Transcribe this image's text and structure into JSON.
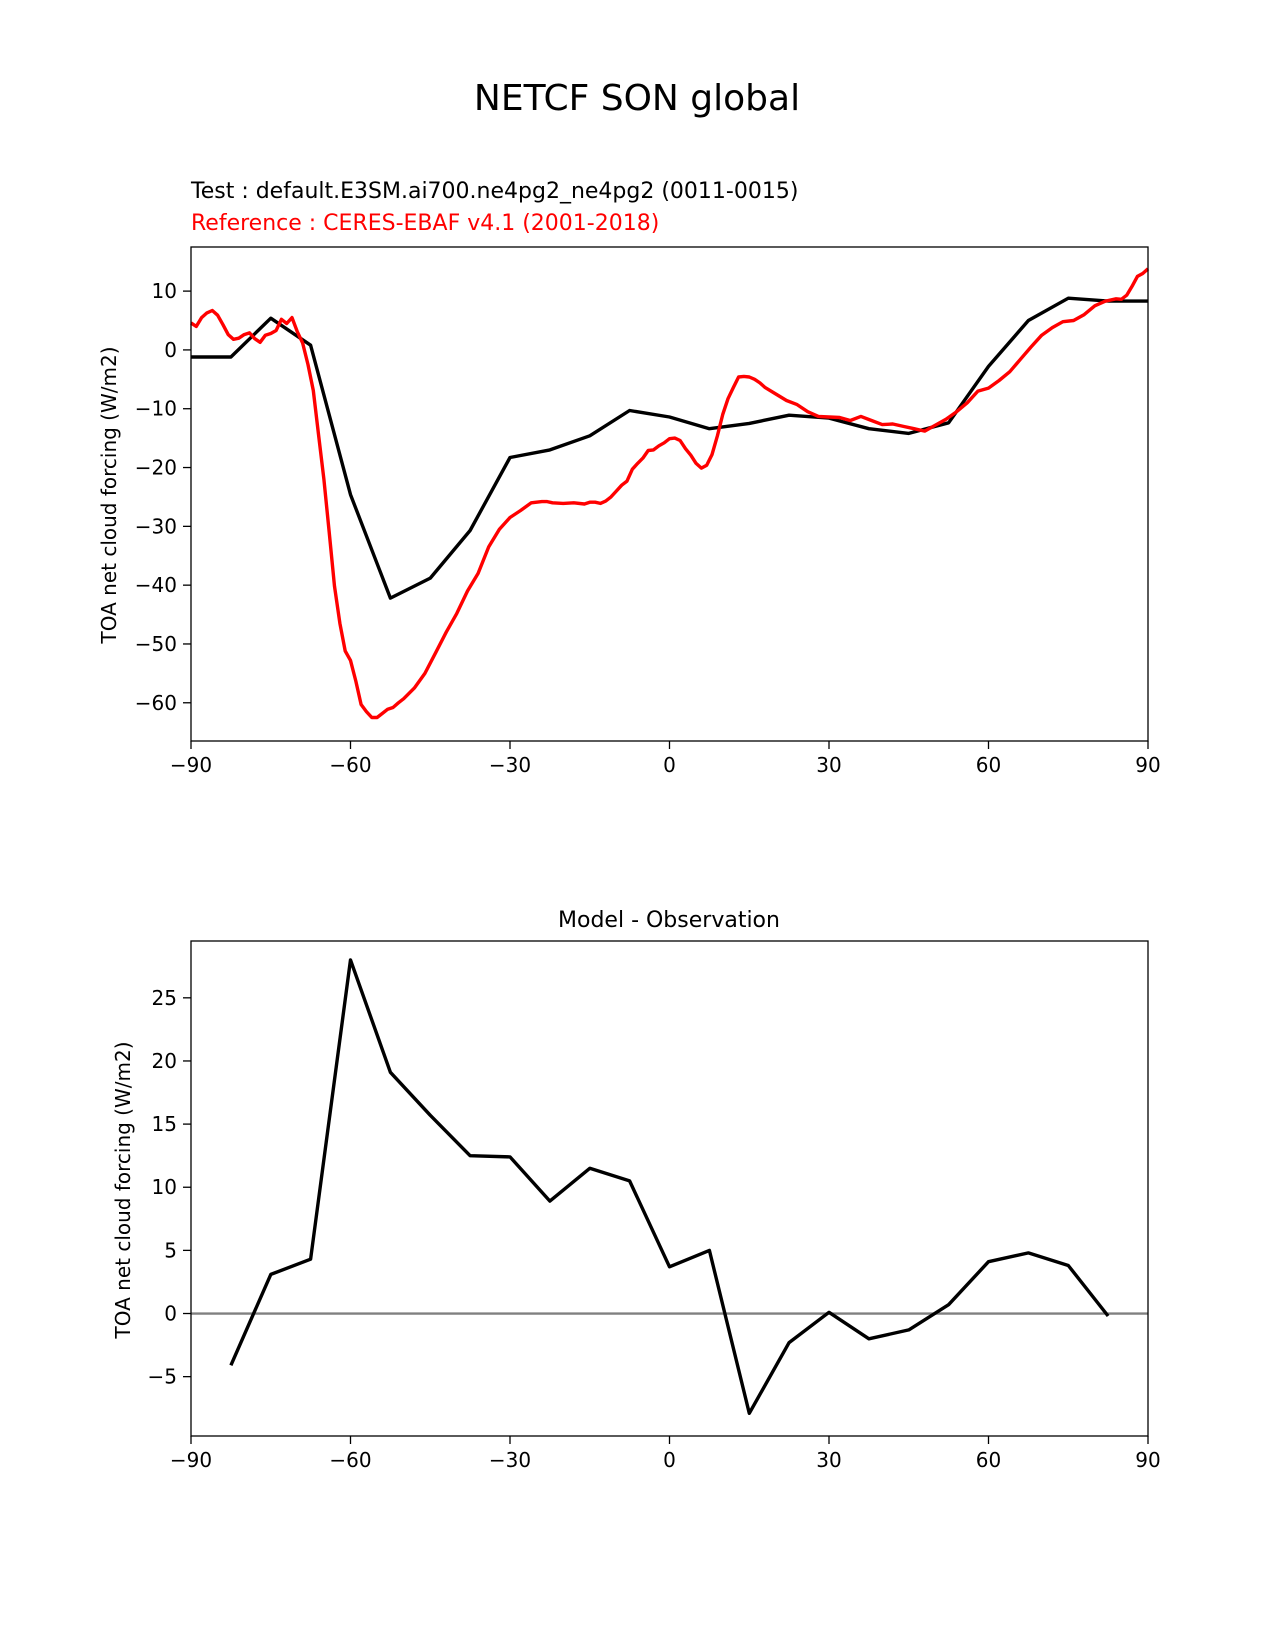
{
  "figure": {
    "title": "NETCF SON global"
  },
  "chart_data": [
    {
      "type": "line",
      "test_label": "Test : default.E3SM.ai700.ne4pg2_ne4pg2 (0011-0015)",
      "reference_label": "Reference : CERES-EBAF v4.1 (2001-2018)",
      "xlabel": "",
      "ylabel": "TOA net cloud forcing (W/m2)",
      "xlim": [
        -90,
        90
      ],
      "ylim": [
        -66.5,
        17.5
      ],
      "xticks": [
        -90,
        -60,
        -30,
        0,
        30,
        60,
        90
      ],
      "xtick_labels": [
        "−90",
        "−60",
        "−30",
        "0",
        "30",
        "60",
        "90"
      ],
      "yticks": [
        10,
        0,
        -10,
        -20,
        -30,
        -40,
        -50,
        -60
      ],
      "ytick_labels": [
        "10",
        "0",
        "−10",
        "−20",
        "−30",
        "−40",
        "−50",
        "−60"
      ],
      "grid": false,
      "series": [
        {
          "color": "#000000",
          "x": [
            -90,
            -82.5,
            -75,
            -67.5,
            -60,
            -52.5,
            -45,
            -37.5,
            -30,
            -22.5,
            -15,
            -7.5,
            0,
            7.5,
            15,
            22.5,
            30,
            37.5,
            45,
            52.5,
            60,
            67.5,
            75,
            82.5,
            90
          ],
          "y": [
            -1.2,
            -1.2,
            5.4,
            0.8,
            -24.6,
            -42.2,
            -38.8,
            -30.7,
            -18.3,
            -17.0,
            -14.6,
            -10.3,
            -11.4,
            -13.4,
            -12.5,
            -11.1,
            -11.6,
            -13.4,
            -14.2,
            -12.4,
            -2.8,
            5.0,
            8.8,
            8.3,
            8.3
          ]
        },
        {
          "color": "#ff0000",
          "x": [
            -90,
            -89,
            -88,
            -87,
            -86,
            -85,
            -84,
            -83,
            -82,
            -81,
            -80,
            -79,
            -78,
            -77,
            -76,
            -75,
            -74,
            -73,
            -72,
            -71,
            -70,
            -69,
            -68,
            -67,
            -66,
            -65,
            -64,
            -63,
            -62,
            -61,
            -60,
            -59,
            -58,
            -57,
            -56,
            -55,
            -54,
            -53,
            -52,
            -51,
            -50,
            -48,
            -46,
            -44,
            -42,
            -40,
            -38,
            -36,
            -34,
            -32,
            -30,
            -28,
            -26,
            -24,
            -23,
            -22,
            -20,
            -18,
            -16,
            -15,
            -14,
            -13,
            -12,
            -11,
            -10,
            -9,
            -8,
            -7,
            -6,
            -5,
            -4,
            -3,
            -2,
            -1,
            0,
            1,
            2,
            3,
            4,
            5,
            6,
            7,
            8,
            9,
            10,
            11,
            12,
            13,
            14,
            15,
            16,
            17,
            18,
            20,
            22,
            24,
            26,
            28,
            30,
            32,
            34,
            36,
            38,
            40,
            42,
            44,
            46,
            48,
            50,
            52,
            54,
            56,
            58,
            60,
            62,
            64,
            66,
            68,
            70,
            72,
            74,
            76,
            78,
            80,
            82,
            84,
            85,
            86,
            87,
            88,
            89,
            90
          ],
          "y": [
            4.6,
            4.0,
            5.5,
            6.3,
            6.7,
            5.9,
            4.3,
            2.6,
            1.8,
            2.0,
            2.6,
            2.9,
            1.9,
            1.3,
            2.5,
            2.8,
            3.3,
            5.2,
            4.5,
            5.5,
            3.1,
            1.2,
            -2.5,
            -6.9,
            -14.5,
            -22.0,
            -31.0,
            -40.2,
            -46.5,
            -51.2,
            -52.8,
            -56.3,
            -60.3,
            -61.5,
            -62.5,
            -62.5,
            -61.8,
            -61.1,
            -60.8,
            -60.0,
            -59.3,
            -57.5,
            -55.0,
            -51.5,
            -48.0,
            -44.8,
            -41.0,
            -38.0,
            -33.5,
            -30.5,
            -28.5,
            -27.3,
            -26.0,
            -25.8,
            -25.8,
            -26.0,
            -26.1,
            -26.0,
            -26.2,
            -25.9,
            -25.9,
            -26.1,
            -25.7,
            -25.0,
            -24.0,
            -23.0,
            -22.3,
            -20.3,
            -19.3,
            -18.4,
            -17.1,
            -17.0,
            -16.3,
            -15.8,
            -15.1,
            -15.0,
            -15.4,
            -16.8,
            -17.9,
            -19.3,
            -20.1,
            -19.6,
            -17.8,
            -14.6,
            -11.0,
            -8.3,
            -6.4,
            -4.6,
            -4.5,
            -4.6,
            -5.0,
            -5.6,
            -6.4,
            -7.5,
            -8.6,
            -9.3,
            -10.5,
            -11.3,
            -11.4,
            -11.5,
            -12.0,
            -11.3,
            -12.0,
            -12.7,
            -12.6,
            -13.0,
            -13.4,
            -13.8,
            -12.8,
            -11.8,
            -10.5,
            -9.0,
            -7.0,
            -6.5,
            -5.2,
            -3.7,
            -1.6,
            0.5,
            2.5,
            3.8,
            4.8,
            5.0,
            6.0,
            7.5,
            8.3,
            8.7,
            8.6,
            9.3,
            10.8,
            12.5,
            13.0,
            13.8
          ]
        }
      ]
    },
    {
      "type": "line",
      "title": "Model - Observation",
      "xlabel": "",
      "ylabel": "TOA net cloud forcing (W/m2)",
      "xlim": [
        -90,
        90
      ],
      "ylim": [
        -9.7,
        29.5
      ],
      "xticks": [
        -90,
        -60,
        -30,
        0,
        30,
        60,
        90
      ],
      "xtick_labels": [
        "−90",
        "−60",
        "−30",
        "0",
        "30",
        "60",
        "90"
      ],
      "yticks": [
        25,
        20,
        15,
        10,
        5,
        0,
        -5
      ],
      "ytick_labels": [
        "25",
        "20",
        "15",
        "10",
        "5",
        "0",
        "−5"
      ],
      "grid": false,
      "zero_line_color": "#808080",
      "series": [
        {
          "color": "#000000",
          "x": [
            -82.5,
            -75,
            -67.5,
            -60,
            -52.5,
            -45,
            -37.5,
            -30,
            -22.5,
            -15,
            -7.5,
            0,
            7.5,
            15,
            22.5,
            30,
            37.5,
            45,
            52.5,
            60,
            67.5,
            75,
            82.5
          ],
          "y": [
            -4.1,
            3.1,
            4.3,
            28.0,
            19.1,
            15.7,
            12.5,
            12.4,
            8.9,
            11.5,
            10.5,
            3.7,
            5.0,
            -7.9,
            -2.3,
            0.1,
            -2.0,
            -1.3,
            0.7,
            4.1,
            4.8,
            3.8,
            -0.2
          ]
        }
      ]
    }
  ]
}
